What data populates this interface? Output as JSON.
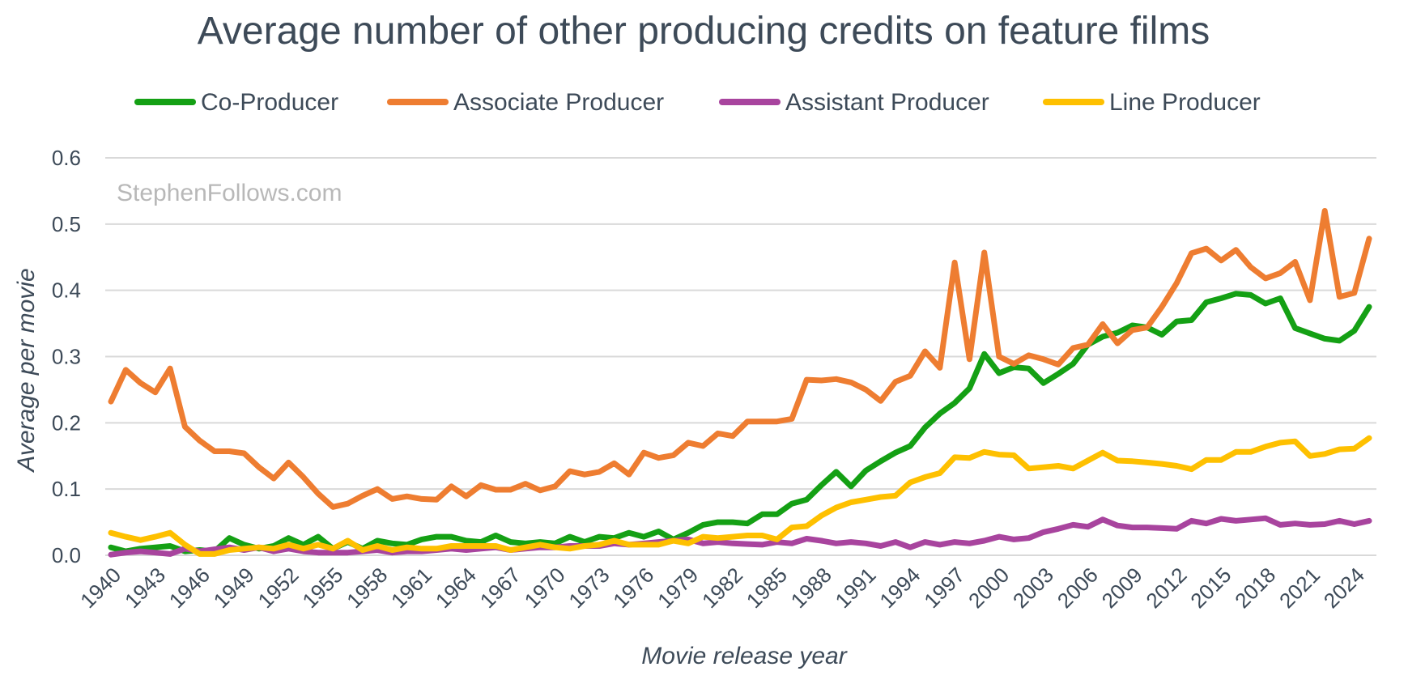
{
  "chart_data": {
    "type": "line",
    "title": "Average number of other producing credits on feature films",
    "xlabel": "Movie release year",
    "ylabel": "Average per movie",
    "watermark": "StephenFollows.com",
    "ylim": [
      0,
      0.6
    ],
    "yticks": [
      "0.0",
      "0.1",
      "0.2",
      "0.3",
      "0.4",
      "0.5",
      "0.6"
    ],
    "yticks_values": [
      0,
      0.1,
      0.2,
      0.3,
      0.4,
      0.5,
      0.6
    ],
    "xticks": [
      "1940",
      "1943",
      "1946",
      "1949",
      "1952",
      "1955",
      "1958",
      "1961",
      "1964",
      "1967",
      "1970",
      "1973",
      "1976",
      "1979",
      "1982",
      "1985",
      "1988",
      "1991",
      "1994",
      "1997",
      "2000",
      "2003",
      "2006",
      "2009",
      "2012",
      "2015",
      "2018",
      "2021",
      "2024"
    ],
    "x_start": 1940,
    "x_end": 2025,
    "grid": true,
    "legend_position": "top",
    "series": [
      {
        "name": "Co-Producer",
        "color": "#14a014",
        "values": [
          0.012,
          0.006,
          0.01,
          0.012,
          0.014,
          0.006,
          0.008,
          0.006,
          0.026,
          0.016,
          0.01,
          0.014,
          0.026,
          0.016,
          0.028,
          0.01,
          0.02,
          0.01,
          0.022,
          0.018,
          0.016,
          0.024,
          0.028,
          0.028,
          0.022,
          0.02,
          0.03,
          0.02,
          0.018,
          0.02,
          0.018,
          0.028,
          0.02,
          0.028,
          0.026,
          0.034,
          0.028,
          0.036,
          0.024,
          0.034,
          0.046,
          0.05,
          0.05,
          0.048,
          0.062,
          0.062,
          0.078,
          0.084,
          0.106,
          0.126,
          0.104,
          0.128,
          0.142,
          0.155,
          0.165,
          0.193,
          0.214,
          0.23,
          0.252,
          0.304,
          0.275,
          0.284,
          0.282,
          0.26,
          0.274,
          0.289,
          0.318,
          0.33,
          0.336,
          0.347,
          0.344,
          0.333,
          0.353,
          0.355,
          0.382,
          0.388,
          0.395,
          0.393,
          0.38,
          0.388,
          0.343,
          0.335,
          0.327,
          0.324,
          0.339,
          0.375
        ]
      },
      {
        "name": "Associate Producer",
        "color": "#ee7d31",
        "values": [
          0.232,
          0.28,
          0.26,
          0.246,
          0.282,
          0.194,
          0.173,
          0.157,
          0.157,
          0.154,
          0.133,
          0.116,
          0.14,
          0.118,
          0.093,
          0.073,
          0.078,
          0.09,
          0.1,
          0.085,
          0.089,
          0.085,
          0.084,
          0.104,
          0.089,
          0.106,
          0.099,
          0.099,
          0.108,
          0.098,
          0.104,
          0.127,
          0.122,
          0.126,
          0.139,
          0.122,
          0.155,
          0.147,
          0.151,
          0.17,
          0.165,
          0.184,
          0.18,
          0.202,
          0.202,
          0.202,
          0.206,
          0.265,
          0.264,
          0.266,
          0.261,
          0.25,
          0.233,
          0.262,
          0.271,
          0.308,
          0.283,
          0.442,
          0.296,
          0.457,
          0.3,
          0.289,
          0.302,
          0.296,
          0.288,
          0.313,
          0.318,
          0.349,
          0.32,
          0.34,
          0.344,
          0.375,
          0.411,
          0.456,
          0.463,
          0.445,
          0.461,
          0.435,
          0.418,
          0.426,
          0.443,
          0.385,
          0.52,
          0.39,
          0.396,
          0.478
        ]
      },
      {
        "name": "Assistant Producer",
        "color": "#a8449e",
        "values": [
          0.001,
          0.004,
          0.006,
          0.004,
          0.002,
          0.01,
          0.006,
          0.009,
          0.012,
          0.008,
          0.012,
          0.006,
          0.01,
          0.006,
          0.004,
          0.004,
          0.004,
          0.006,
          0.008,
          0.004,
          0.006,
          0.006,
          0.008,
          0.01,
          0.008,
          0.01,
          0.012,
          0.008,
          0.01,
          0.012,
          0.012,
          0.014,
          0.014,
          0.014,
          0.018,
          0.016,
          0.018,
          0.02,
          0.022,
          0.024,
          0.018,
          0.02,
          0.018,
          0.017,
          0.016,
          0.02,
          0.018,
          0.025,
          0.022,
          0.018,
          0.02,
          0.018,
          0.014,
          0.02,
          0.012,
          0.02,
          0.016,
          0.02,
          0.018,
          0.022,
          0.028,
          0.024,
          0.026,
          0.035,
          0.04,
          0.046,
          0.043,
          0.054,
          0.045,
          0.042,
          0.042,
          0.041,
          0.04,
          0.052,
          0.048,
          0.055,
          0.052,
          0.054,
          0.056,
          0.046,
          0.048,
          0.046,
          0.047,
          0.052,
          0.047,
          0.052
        ]
      },
      {
        "name": "Line Producer",
        "color": "#fec000",
        "values": [
          0.034,
          0.028,
          0.023,
          0.028,
          0.034,
          0.016,
          0.002,
          0.002,
          0.008,
          0.01,
          0.012,
          0.01,
          0.016,
          0.01,
          0.016,
          0.01,
          0.022,
          0.008,
          0.014,
          0.008,
          0.012,
          0.01,
          0.01,
          0.014,
          0.014,
          0.014,
          0.014,
          0.008,
          0.012,
          0.016,
          0.012,
          0.01,
          0.014,
          0.016,
          0.022,
          0.016,
          0.016,
          0.016,
          0.022,
          0.018,
          0.028,
          0.026,
          0.028,
          0.03,
          0.03,
          0.024,
          0.042,
          0.044,
          0.06,
          0.072,
          0.08,
          0.084,
          0.088,
          0.09,
          0.11,
          0.118,
          0.124,
          0.148,
          0.147,
          0.156,
          0.152,
          0.151,
          0.131,
          0.133,
          0.135,
          0.131,
          0.143,
          0.155,
          0.143,
          0.142,
          0.14,
          0.138,
          0.135,
          0.13,
          0.144,
          0.144,
          0.156,
          0.156,
          0.164,
          0.17,
          0.172,
          0.15,
          0.153,
          0.16,
          0.161,
          0.177
        ]
      }
    ]
  }
}
